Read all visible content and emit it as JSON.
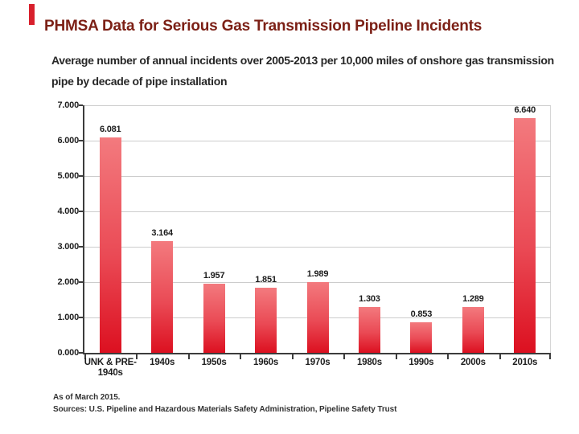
{
  "slide": {
    "title": "PHMSA Data for Serious Gas Transmission Pipeline Incidents",
    "accent_color": "#d8202c",
    "title_color": "#7c2016"
  },
  "chart_data": {
    "type": "bar",
    "title": "Average number of annual incidents over 2005-2013 per 10,000 miles of onshore gas transmission\npipe by decade of pipe installation",
    "categories": [
      "UNK & PRE-\n1940s",
      "1940s",
      "1950s",
      "1960s",
      "1970s",
      "1980s",
      "1990s",
      "2000s",
      "2010s"
    ],
    "values": [
      6.081,
      3.164,
      1.957,
      1.851,
      1.989,
      1.303,
      0.853,
      1.289,
      6.64
    ],
    "value_labels": [
      "6.081",
      "3.164",
      "1.957",
      "1.851",
      "1.989",
      "1.303",
      "0.853",
      "1.289",
      "6.640"
    ],
    "xlabel": "",
    "ylabel": "",
    "ylim": [
      0,
      7
    ],
    "ytick_labels": [
      "7.000",
      "6.000",
      "5.000",
      "4.000",
      "3.000",
      "2.000",
      "1.000",
      "0.000"
    ],
    "grid": true,
    "legend": false,
    "bar_color_top": "#f37a7e",
    "bar_color_bottom": "#dc1020",
    "gridline_color": "#cccccc",
    "axis_color": "#3c3c3c",
    "footnotes": [
      "As of March 2015.",
      "Sources: U.S. Pipeline and Hazardous Materials Safety Administration, Pipeline Safety Trust"
    ]
  }
}
